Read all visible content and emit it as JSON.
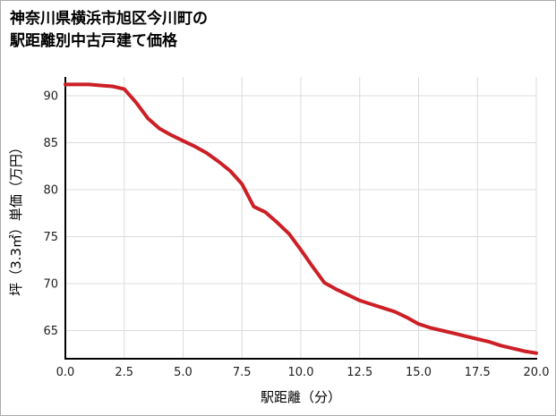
{
  "page": {
    "background": "#ffffff",
    "border_color": "#ababab"
  },
  "title": {
    "line1": "神奈川県横浜市旭区今川町の",
    "line2": "駅距離別中古戸建て価格"
  },
  "chart_data": {
    "type": "line",
    "title": "神奈川県横浜市旭区今川町の駅距離別中古戸建て価格",
    "xlabel": "駅距離（分）",
    "ylabel": "坪（3.3㎡）単価（万円）",
    "xlim": [
      0,
      20
    ],
    "ylim": [
      62,
      92
    ],
    "x_ticks": [
      0,
      2.5,
      5,
      7.5,
      10,
      12.5,
      15,
      17.5,
      20
    ],
    "x_tick_labels": [
      "0.0",
      "2.5",
      "5.0",
      "7.5",
      "10.0",
      "12.5",
      "15.0",
      "17.5",
      "20.0"
    ],
    "y_ticks": [
      65,
      70,
      75,
      80,
      85,
      90
    ],
    "y_tick_labels": [
      "65",
      "70",
      "75",
      "80",
      "85",
      "90"
    ],
    "grid": true,
    "grid_color": "#dcdcdc",
    "spine_color": "#000000",
    "line_color": "#cc1f26",
    "line_width": 4,
    "legend": "none",
    "series": [
      {
        "name": "坪単価（万円）",
        "x": [
          0,
          0.5,
          1,
          1.5,
          2,
          2.5,
          3,
          3.5,
          4,
          4.5,
          5,
          5.5,
          6,
          6.5,
          7,
          7.5,
          8,
          8.5,
          9,
          9.5,
          10,
          10.5,
          11,
          11.5,
          12,
          12.5,
          13,
          13.5,
          14,
          14.5,
          15,
          15.5,
          16,
          16.5,
          17,
          17.5,
          18,
          18.5,
          19,
          19.5,
          20
        ],
        "y": [
          91.2,
          91.2,
          91.2,
          91.1,
          91.0,
          90.7,
          89.3,
          87.6,
          86.5,
          85.8,
          85.2,
          84.6,
          83.9,
          83.0,
          82.0,
          80.6,
          78.2,
          77.6,
          76.5,
          75.3,
          73.6,
          71.8,
          70.1,
          69.4,
          68.8,
          68.2,
          67.8,
          67.4,
          67.0,
          66.4,
          65.7,
          65.3,
          65.0,
          64.7,
          64.4,
          64.1,
          63.8,
          63.4,
          63.1,
          62.8,
          62.6
        ]
      }
    ]
  }
}
